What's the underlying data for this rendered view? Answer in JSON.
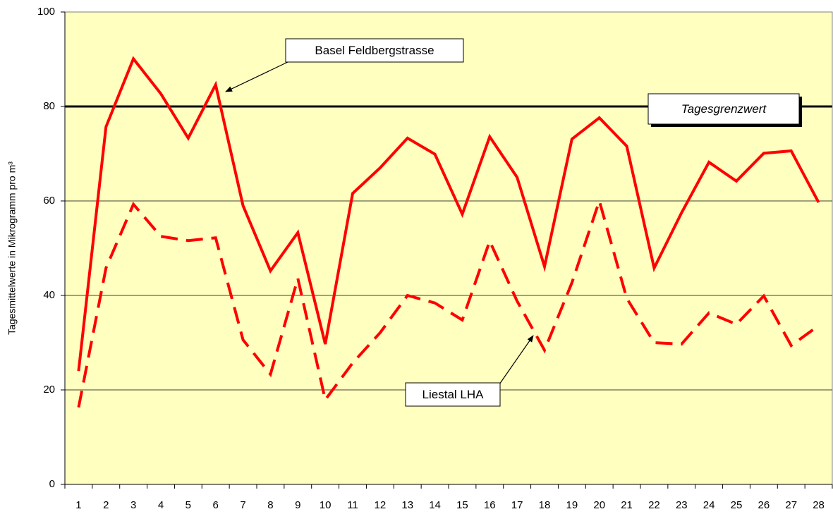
{
  "chart_data": {
    "type": "line",
    "y_label": "Tagesmittelwerte in Mikrogramm pro m³",
    "categories": [
      "1",
      "2",
      "3",
      "4",
      "5",
      "6",
      "7",
      "8",
      "9",
      "10",
      "11",
      "12",
      "13",
      "14",
      "15",
      "16",
      "17",
      "18",
      "19",
      "20",
      "21",
      "22",
      "23",
      "24",
      "25",
      "26",
      "27",
      "28"
    ],
    "series": [
      {
        "name": "Basel Feldbergstrasse",
        "color": "#ff0000",
        "dash": false,
        "values": [
          24,
          75.7,
          90.1,
          82.7,
          73.3,
          84.6,
          59,
          45.2,
          53.3,
          29.7,
          61.6,
          67,
          73.3,
          69.9,
          57.2,
          73.6,
          65,
          46.1,
          73.1,
          77.6,
          71.6,
          45.8,
          57.5,
          68.2,
          64.2,
          70.1,
          70.6,
          59.7
        ]
      },
      {
        "name": "Liestal LHA",
        "color": "#ff0000",
        "dash": true,
        "values": [
          16.3,
          45.8,
          59.3,
          52.5,
          51.6,
          52.2,
          30.6,
          23.3,
          43.6,
          17.9,
          25.7,
          32.1,
          40,
          38.4,
          34.8,
          51.5,
          38.8,
          28.4,
          42.7,
          60,
          39.4,
          30,
          29.7,
          36.3,
          33.9,
          39.9,
          29.4,
          33.6
        ]
      }
    ],
    "threshold": {
      "value": 80,
      "label": "Tagesgrenzwert",
      "color": "#000000"
    },
    "ylim": [
      0,
      100
    ],
    "yticks": [
      0,
      20,
      40,
      60,
      80,
      100
    ],
    "grid": true,
    "background": "#ffffc0"
  }
}
